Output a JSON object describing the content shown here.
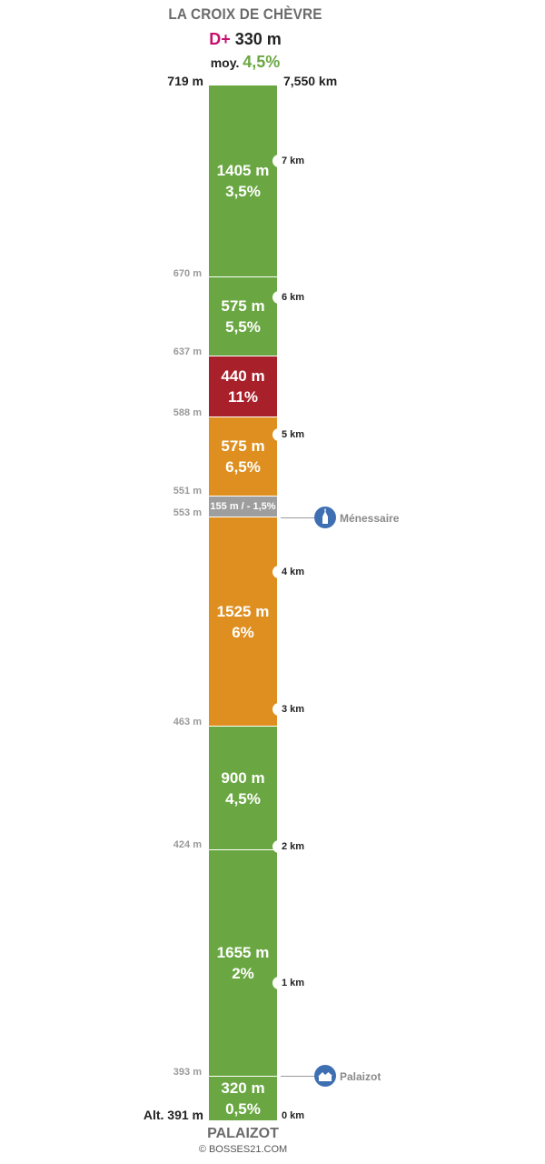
{
  "header": {
    "title": "LA CROIX DE CHÈVRE",
    "dplus_label": "D+",
    "dplus_value": "330 m",
    "avg_label": "moy.",
    "avg_value": "4,5%",
    "top_altitude": "719 m",
    "total_distance": "7,550 km"
  },
  "colors": {
    "green": "#6aa742",
    "orange": "#de8f1f",
    "red": "#a8202a",
    "grey": "#9e9e9e",
    "poi_blue": "#3f6fb3"
  },
  "segments": [
    {
      "length": "1405 m",
      "grade": "3,5%",
      "color": "green"
    },
    {
      "length": "575 m",
      "grade": "5,5%",
      "color": "green"
    },
    {
      "length": "440 m",
      "grade": "11%",
      "color": "red"
    },
    {
      "length": "575 m",
      "grade": "6,5%",
      "color": "orange"
    },
    {
      "length": "155 m / - 1,5%",
      "grade": "",
      "color": "grey"
    },
    {
      "length": "1525 m",
      "grade": "6%",
      "color": "orange"
    },
    {
      "length": "900 m",
      "grade": "4,5%",
      "color": "green"
    },
    {
      "length": "1655 m",
      "grade": "2%",
      "color": "green"
    },
    {
      "length": "320 m",
      "grade": "0,5%",
      "color": "green"
    }
  ],
  "altitudes": [
    "670 m",
    "637 m",
    "588 m",
    "551 m",
    "553 m",
    "463 m",
    "424 m",
    "393 m"
  ],
  "km_markers": [
    "7 km",
    "6 km",
    "5 km",
    "4 km",
    "3 km",
    "2 km",
    "1 km"
  ],
  "pois": [
    {
      "name": "Ménessaire",
      "icon": "church-icon"
    },
    {
      "name": "Palaizot",
      "icon": "village-icon"
    }
  ],
  "footer": {
    "start_altitude": "Alt. 391 m",
    "start_km": "0 km",
    "start_name": "PALAIZOT",
    "credit": "© BOSSES21.COM"
  }
}
